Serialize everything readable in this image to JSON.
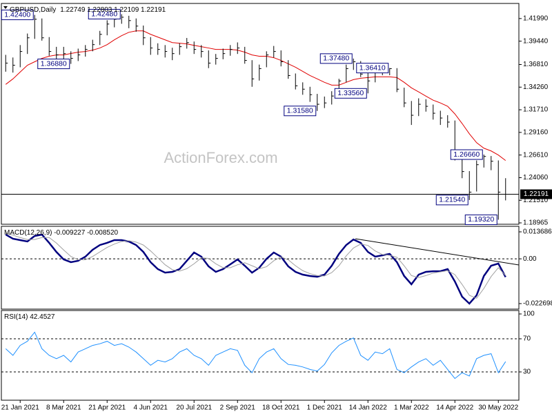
{
  "chart_data": [
    {
      "type": "ohlc",
      "title": "GBPUSD,Daily",
      "subtitle": "1.22749 1.22803 1.22109 1.22191",
      "watermark": "ActionForex.com",
      "color": "#000000",
      "high": [
        1.379,
        1.376,
        1.39,
        1.403,
        1.424,
        1.42,
        1.399,
        1.388,
        1.388,
        1.383,
        1.386,
        1.39,
        1.396,
        1.406,
        1.418,
        1.423,
        1.4248,
        1.423,
        1.42,
        1.412,
        1.399,
        1.392,
        1.39,
        1.387,
        1.392,
        1.398,
        1.394,
        1.39,
        1.384,
        1.38,
        1.386,
        1.39,
        1.393,
        1.388,
        1.373,
        1.368,
        1.383,
        1.389,
        1.384,
        1.373,
        1.358,
        1.348,
        1.343,
        1.335,
        1.332,
        1.338,
        1.352,
        1.368,
        1.3748,
        1.372,
        1.36,
        1.366,
        1.366,
        1.3641,
        1.364,
        1.342,
        1.327,
        1.33,
        1.329,
        1.323,
        1.316,
        1.311,
        1.305,
        1.267,
        1.248,
        1.26,
        1.2666,
        1.265,
        1.26,
        1.24
      ],
      "low": [
        1.36,
        1.359,
        1.365,
        1.38,
        1.397,
        1.395,
        1.378,
        1.372,
        1.371,
        1.3688,
        1.372,
        1.377,
        1.383,
        1.39,
        1.401,
        1.41,
        1.414,
        1.409,
        1.405,
        1.39,
        1.379,
        1.379,
        1.376,
        1.373,
        1.379,
        1.386,
        1.38,
        1.376,
        1.364,
        1.368,
        1.374,
        1.378,
        1.38,
        1.369,
        1.343,
        1.35,
        1.365,
        1.376,
        1.366,
        1.352,
        1.34,
        1.334,
        1.326,
        1.3158,
        1.319,
        1.323,
        1.33,
        1.348,
        1.362,
        1.354,
        1.3356,
        1.348,
        1.356,
        1.356,
        1.337,
        1.32,
        1.3,
        1.31,
        1.315,
        1.306,
        1.3,
        1.297,
        1.26,
        1.24,
        1.2154,
        1.225,
        1.252,
        1.249,
        1.1932,
        1.215
      ],
      "close": [
        1.3697,
        1.3673,
        1.3828,
        1.3982,
        1.4191,
        1.3982,
        1.3828,
        1.3789,
        1.3804,
        1.375,
        1.3789,
        1.3851,
        1.3905,
        1.4021,
        1.4137,
        1.4191,
        1.4214,
        1.4176,
        1.4114,
        1.3982,
        1.3867,
        1.3851,
        1.3828,
        1.3804,
        1.3882,
        1.3928,
        1.3851,
        1.3828,
        1.3697,
        1.375,
        1.3804,
        1.3851,
        1.3867,
        1.3727,
        1.3519,
        1.3635,
        1.3789,
        1.3828,
        1.3712,
        1.3557,
        1.3441,
        1.3403,
        1.3341,
        1.3233,
        1.3248,
        1.3326,
        1.3496,
        1.3635,
        1.3712,
        1.3573,
        1.3496,
        1.3635,
        1.3619,
        1.3635,
        1.3403,
        1.3248,
        1.3109,
        1.3233,
        1.321,
        1.3132,
        1.3078,
        1.3032,
        1.2668,
        1.2475,
        1.2243,
        1.2552,
        1.2645,
        1.2591,
        1.2243,
        1.22191
      ],
      "series": [
        {
          "color": "#e00000",
          "values": [
            1.3457,
            1.3519,
            1.3596,
            1.3673,
            1.3712,
            1.375,
            1.3774,
            1.3789,
            1.3789,
            1.3805,
            1.382,
            1.3828,
            1.3843,
            1.3867,
            1.3905,
            1.3959,
            1.4006,
            1.4044,
            1.406,
            1.406,
            1.4021,
            1.399,
            1.3959,
            1.3928,
            1.3921,
            1.3913,
            1.3897,
            1.3882,
            1.3867,
            1.3851,
            1.3851,
            1.3851,
            1.3843,
            1.382,
            1.3789,
            1.3774,
            1.3774,
            1.3758,
            1.3727,
            1.3689,
            1.365,
            1.3604,
            1.3557,
            1.3519,
            1.348,
            1.3449,
            1.3449,
            1.348,
            1.3511,
            1.3526,
            1.3534,
            1.3542,
            1.3542,
            1.3542,
            1.3534,
            1.348,
            1.3418,
            1.3372,
            1.3325,
            1.3279,
            1.3248,
            1.321,
            1.3124,
            1.3016,
            1.29,
            1.28,
            1.2738,
            1.2707,
            1.2661,
            1.2599
          ]
        }
      ],
      "ylim": [
        1.1881,
        1.4369
      ],
      "yticks": [
        {
          "value": 1.4199,
          "label": "1.41990"
        },
        {
          "value": 1.3944,
          "label": "1.39440"
        },
        {
          "value": 1.3681,
          "label": "1.36810"
        },
        {
          "value": 1.3426,
          "label": "1.34260"
        },
        {
          "value": 1.3171,
          "label": "1.31710"
        },
        {
          "value": 1.2916,
          "label": "1.29160"
        },
        {
          "value": 1.2661,
          "label": "1.26610"
        },
        {
          "value": 1.2406,
          "label": "1.24060"
        },
        {
          "value": 1.2151,
          "label": "1.21510"
        },
        1.18965
      ],
      "grid": false,
      "annotations": [
        {
          "value": 1.424,
          "label": "1.42400"
        },
        {
          "value": 1.4248,
          "label": "1.42480"
        },
        {
          "value": 1.3688,
          "label": "1.36880"
        },
        {
          "value": 1.3748,
          "label": "1.37480"
        },
        {
          "value": 1.3641,
          "label": "1.36410"
        },
        {
          "value": 1.3356,
          "label": "1.33560"
        },
        {
          "value": 1.3158,
          "label": "1.31580"
        },
        {
          "value": 1.2666,
          "label": "1.26660"
        },
        {
          "value": 1.2154,
          "label": "1.21540"
        },
        {
          "value": 1.1932,
          "label": "1.19320"
        }
      ],
      "current": {
        "value": 1.22191,
        "label": "1.22191"
      }
    },
    {
      "type": "line",
      "title": "MACD(12,26,9) -0.009227 -0.008520",
      "series": [
        {
          "color": "#00007f",
          "values": [
            0.0123,
            0.0102,
            0.0095,
            0.0088,
            0.0116,
            0.0123,
            0.0081,
            0.0035,
            -0.0003,
            -0.0017,
            -0.001,
            0.0011,
            0.0046,
            0.007,
            0.0081,
            0.0095,
            0.0095,
            0.0088,
            0.007,
            0.0035,
            -0.0017,
            -0.0052,
            -0.007,
            -0.0066,
            -0.0052,
            -0.001,
            0.0032,
            0.0011,
            -0.0038,
            -0.0066,
            -0.0052,
            -0.0028,
            -0.0003,
            -0.0035,
            -0.007,
            -0.0045,
            0.0,
            0.0032,
            0.0011,
            -0.0038,
            -0.0066,
            -0.008,
            -0.0087,
            -0.0091,
            -0.008,
            -0.0035,
            0.0025,
            0.007,
            0.0098,
            0.0081,
            0.0035,
            0.0011,
            0.0018,
            0.0025,
            -0.0017,
            -0.0087,
            -0.0129,
            -0.008,
            -0.0066,
            -0.0063,
            -0.0063,
            -0.0052,
            -0.0115,
            -0.0192,
            -0.0227,
            -0.0185,
            -0.0087,
            -0.0035,
            -0.0024,
            -0.009227
          ]
        },
        {
          "color": "#a0a0a0",
          "values": [
            0.013,
            0.012,
            0.0108,
            0.0098,
            0.0098,
            0.0108,
            0.0108,
            0.008,
            0.0045,
            0.0012,
            -0.0005,
            -0.0005,
            0.0012,
            0.0035,
            0.0058,
            0.0075,
            0.0088,
            0.0092,
            0.0085,
            0.007,
            0.004,
            0.0005,
            -0.003,
            -0.0055,
            -0.0062,
            -0.005,
            -0.0025,
            0.0005,
            0.0002,
            -0.0025,
            -0.0045,
            -0.0045,
            -0.003,
            -0.002,
            -0.0035,
            -0.005,
            -0.004,
            -0.001,
            0.001,
            -0.0005,
            -0.0035,
            -0.006,
            -0.0075,
            -0.0085,
            -0.0087,
            -0.007,
            -0.0035,
            0.0015,
            0.0055,
            0.0075,
            0.0068,
            0.004,
            0.0022,
            0.0018,
            0.0008,
            -0.0035,
            -0.0085,
            -0.0095,
            -0.0085,
            -0.0072,
            -0.0066,
            -0.006,
            -0.008,
            -0.013,
            -0.0185,
            -0.02,
            -0.015,
            -0.009,
            -0.0045,
            -0.00852
          ]
        }
      ],
      "ylim": [
        -0.022698,
        0.013686
      ],
      "yticks": [
        0.013686,
        {
          "value": 0,
          "label": "0.00"
        },
        -0.022698
      ],
      "grid": true
    },
    {
      "type": "line",
      "title": "RSI(14) 42.4527",
      "series": [
        {
          "color": "#1e90ff",
          "values": [
            58,
            50,
            62,
            67,
            78,
            58,
            50,
            46,
            50,
            42,
            54,
            58,
            62,
            64,
            67,
            62,
            64,
            60,
            54,
            46,
            38,
            44,
            42,
            46,
            54,
            58,
            50,
            46,
            38,
            50,
            54,
            58,
            56,
            38,
            29,
            46,
            54,
            58,
            46,
            39,
            38,
            36,
            33,
            31,
            39,
            53,
            62,
            67,
            71,
            50,
            44,
            54,
            52,
            58,
            33,
            29,
            36,
            42,
            46,
            38,
            44,
            33,
            22,
            29,
            25,
            46,
            50,
            52,
            29,
            42.4527
          ]
        }
      ],
      "ylim": [
        0,
        100
      ],
      "yticks": [
        100,
        70,
        30
      ],
      "grid": true,
      "categories": [
        null,
        null,
        "21 Jan 2021",
        null,
        null,
        null,
        null,
        null,
        "8 Mar 2021",
        null,
        null,
        null,
        null,
        null,
        "21 Apr 2021",
        null,
        null,
        null,
        null,
        null,
        "4 Jun 2021",
        null,
        null,
        null,
        null,
        null,
        "20 Jul 2021",
        null,
        null,
        null,
        null,
        null,
        "2 Sep 2021",
        null,
        null,
        null,
        null,
        null,
        "18 Oct 2021",
        null,
        null,
        null,
        null,
        null,
        "1 Dec 2021",
        null,
        null,
        null,
        null,
        null,
        "14 Jan 2022",
        null,
        null,
        null,
        null,
        null,
        "1 Mar 2022",
        null,
        null,
        null,
        null,
        null,
        "14 Apr 2022",
        null,
        null,
        null,
        null,
        null,
        "30 May 2022",
        null
      ]
    }
  ]
}
